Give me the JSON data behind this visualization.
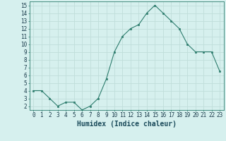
{
  "xlabel": "Humidex (Indice chaleur)",
  "x": [
    0,
    1,
    2,
    3,
    4,
    5,
    6,
    7,
    8,
    9,
    10,
    11,
    12,
    13,
    14,
    15,
    16,
    17,
    18,
    19,
    20,
    21,
    22,
    23
  ],
  "y": [
    4,
    4,
    3,
    2,
    2.5,
    2.5,
    1.5,
    2,
    3,
    5.5,
    9,
    11,
    12,
    12.5,
    14,
    15,
    14,
    13,
    12,
    10,
    9,
    9,
    9,
    6.5
  ],
  "line_color": "#2e7d6e",
  "marker": "s",
  "marker_size": 2.0,
  "bg_color": "#d6f0ee",
  "grid_color": "#c0deda",
  "xlim": [
    -0.5,
    23.5
  ],
  "ylim": [
    1.5,
    15.5
  ],
  "yticks": [
    2,
    3,
    4,
    5,
    6,
    7,
    8,
    9,
    10,
    11,
    12,
    13,
    14,
    15
  ],
  "xticks": [
    0,
    1,
    2,
    3,
    4,
    5,
    6,
    7,
    8,
    9,
    10,
    11,
    12,
    13,
    14,
    15,
    16,
    17,
    18,
    19,
    20,
    21,
    22,
    23
  ],
  "xlabel_fontsize": 7,
  "tick_fontsize": 5.5
}
